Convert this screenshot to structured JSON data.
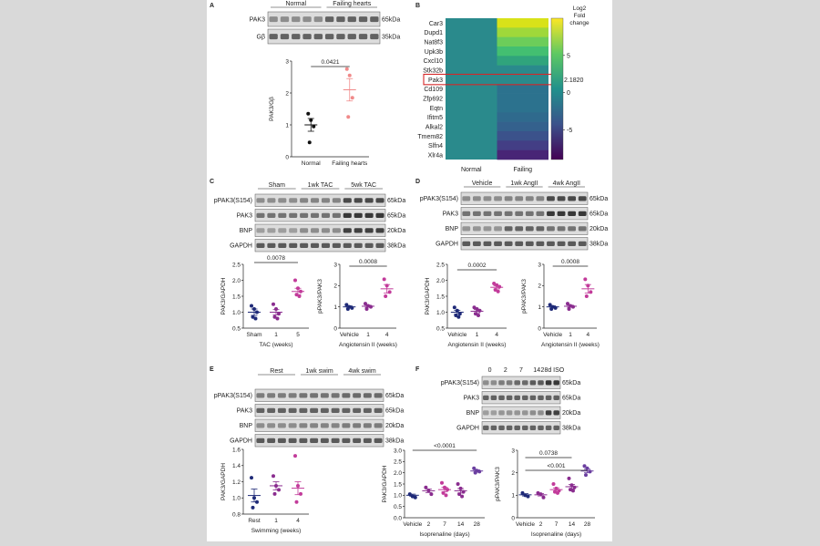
{
  "panels": {
    "A": {
      "letter": "A",
      "group_labels": [
        "Normal",
        "Failing hearts"
      ],
      "blot_rows": [
        {
          "label": "PAK3",
          "kda": "65kDa"
        },
        {
          "label": "Gβ",
          "kda": "35kDa"
        }
      ],
      "chart_data": {
        "type": "scatter",
        "categories": [
          "Normal",
          "Failing hearts"
        ],
        "ylabel": "PAK3/Gβ",
        "ylim": [
          0,
          3
        ],
        "yticks": [
          0,
          1,
          2,
          3
        ],
        "points": [
          [
            1.35,
            1.15,
            0.95,
            0.45
          ],
          [
            2.75,
            2.55,
            1.85,
            1.25
          ]
        ],
        "means": [
          1.0,
          2.1
        ],
        "sems": [
          0.2,
          0.35
        ],
        "p_values": [
          {
            "text": "0.0421",
            "from": 0,
            "to": 1
          }
        ]
      }
    },
    "B": {
      "letter": "B",
      "genes": [
        "Car3",
        "Dupd1",
        "Nat8f3",
        "Upk3b",
        "Cxcl10",
        "Stk32b",
        "Pak3",
        "Cd109",
        "Zfp692",
        "Eqtn",
        "Ifitm5",
        "Alkal2",
        "Tmem82",
        "Slfn4",
        "Xlr4a"
      ],
      "columns": [
        "Normal",
        "Failing"
      ],
      "highlight_gene": "Pak3",
      "highlight_value": "2.1820",
      "colorbar_title": [
        "Log2",
        "Fold",
        "change"
      ],
      "colorbar_ticks": [
        "5",
        "0",
        "-5"
      ],
      "colorbar_range": [
        -9,
        10
      ],
      "colors": {
        "highlight": "#d62728"
      }
    },
    "C": {
      "letter": "C",
      "group_labels": [
        "Sham",
        "1wk TAC",
        "5wk TAC"
      ],
      "blot_rows": [
        {
          "label": "pPAK3(S154)",
          "kda": "65kDa"
        },
        {
          "label": "PAK3",
          "kda": "65kDa"
        },
        {
          "label": "BNP",
          "kda": "20kDa"
        },
        {
          "label": "GAPDH",
          "kda": "38kDa"
        }
      ],
      "chart_data": [
        {
          "type": "scatter",
          "categories": [
            "Sham",
            "1",
            "5"
          ],
          "xlabel": "TAC (weeks)",
          "ylabel": "PAK3/GAPDH",
          "ylim": [
            0.5,
            2.5
          ],
          "yticks": [
            0.5,
            1.0,
            1.5,
            2.0,
            2.5
          ],
          "points": [
            [
              1.2,
              1.1,
              1.0,
              0.85,
              0.8
            ],
            [
              1.25,
              1.1,
              0.95,
              0.85,
              0.8
            ],
            [
              2.0,
              1.75,
              1.65,
              1.55,
              1.5
            ]
          ],
          "means": [
            1.0,
            1.0,
            1.65
          ],
          "sems": [
            0.1,
            0.08,
            0.1
          ],
          "p_values": [
            {
              "text": "0.0078",
              "from": 0,
              "to": 2
            }
          ]
        },
        {
          "type": "scatter",
          "categories": [
            "Vehicle",
            "1",
            "4"
          ],
          "xlabel": "Angiotensin II (weeks)",
          "ylabel": "pPAK3/PAK3",
          "ylim": [
            0,
            3
          ],
          "yticks": [
            0,
            1,
            2,
            3
          ],
          "points": [
            [
              1.1,
              1.0,
              0.95,
              0.9
            ],
            [
              1.15,
              1.05,
              1.0,
              0.9
            ],
            [
              2.3,
              2.0,
              1.7,
              1.5
            ]
          ],
          "means": [
            1.0,
            1.03,
            1.85
          ],
          "sems": [
            0.05,
            0.05,
            0.2
          ],
          "p_values": [
            {
              "text": "0.0008",
              "from": 0,
              "to": 2
            }
          ]
        }
      ]
    },
    "D": {
      "letter": "D",
      "group_labels": [
        "Vehicle",
        "1wk AngII",
        "4wk AngII"
      ],
      "blot_rows": [
        {
          "label": "pPAK3(S154)",
          "kda": "65kDa"
        },
        {
          "label": "PAK3",
          "kda": "65kDa"
        },
        {
          "label": "BNP",
          "kda": "20kDa"
        },
        {
          "label": "GAPDH",
          "kda": "38kDa"
        }
      ],
      "chart_data": [
        {
          "type": "scatter",
          "categories": [
            "Vehicle",
            "1",
            "4"
          ],
          "xlabel": "Angiotensin II (weeks)",
          "ylabel": "PAK3/GAPDH",
          "ylim": [
            0.5,
            2.5
          ],
          "yticks": [
            0.5,
            1.0,
            1.5,
            2.0,
            2.5
          ],
          "points": [
            [
              1.15,
              1.05,
              0.95,
              0.9,
              0.85
            ],
            [
              1.15,
              1.1,
              1.05,
              0.95,
              0.9
            ],
            [
              1.9,
              1.85,
              1.8,
              1.7,
              1.65
            ]
          ],
          "means": [
            1.0,
            1.03,
            1.78
          ],
          "sems": [
            0.06,
            0.05,
            0.05
          ],
          "p_values": [
            {
              "text": "0.0002",
              "from": 0,
              "to": 2
            }
          ]
        },
        {
          "type": "scatter",
          "categories": [
            "Vehicle",
            "1",
            "4"
          ],
          "xlabel": "Angiotensin II (weeks)",
          "ylabel": "pPAK3/PAK3",
          "ylim": [
            0,
            3
          ],
          "yticks": [
            0,
            1,
            2,
            3
          ],
          "points": [
            [
              1.1,
              1.0,
              0.95,
              0.9
            ],
            [
              1.15,
              1.05,
              1.0,
              0.9
            ],
            [
              2.3,
              2.0,
              1.7,
              1.5
            ]
          ],
          "means": [
            1.0,
            1.03,
            1.85
          ],
          "sems": [
            0.05,
            0.05,
            0.2
          ],
          "p_values": [
            {
              "text": "0.0008",
              "from": 0,
              "to": 2
            }
          ]
        }
      ]
    },
    "E": {
      "letter": "E",
      "group_labels": [
        "Rest",
        "1wk swim",
        "4wk swim"
      ],
      "blot_rows": [
        {
          "label": "pPAK3(S154)",
          "kda": "65kDa"
        },
        {
          "label": "PAK3",
          "kda": "65kDa"
        },
        {
          "label": "BNP",
          "kda": "20kDa"
        },
        {
          "label": "GAPDH",
          "kda": "38kDa"
        }
      ],
      "chart_data": {
        "type": "scatter",
        "categories": [
          "Rest",
          "1",
          "4"
        ],
        "xlabel": "Swimming (weeks)",
        "ylabel": "PAK3/GAPDH",
        "ylim": [
          0.8,
          1.6
        ],
        "yticks": [
          0.8,
          1.0,
          1.2,
          1.4,
          1.6
        ],
        "points": [
          [
            1.25,
            1.0,
            0.95,
            0.88
          ],
          [
            1.27,
            1.15,
            1.1,
            1.05
          ],
          [
            1.52,
            1.15,
            1.05,
            0.95
          ]
        ],
        "means": [
          1.03,
          1.15,
          1.12
        ],
        "sems": [
          0.08,
          0.05,
          0.08
        ],
        "p_values": []
      }
    },
    "F": {
      "letter": "F",
      "group_labels": [
        "0",
        "2",
        "7",
        "14",
        "28d ISO"
      ],
      "blot_rows": [
        {
          "label": "pPAK3(S154)",
          "kda": "65kDa"
        },
        {
          "label": "PAK3",
          "kda": "65kDa"
        },
        {
          "label": "BNP",
          "kda": "20kDa"
        },
        {
          "label": "GAPDH",
          "kda": "38kDa"
        }
      ],
      "chart_data": [
        {
          "type": "scatter",
          "categories": [
            "Vehicle",
            "2",
            "7",
            "14",
            "28"
          ],
          "xlabel": "Isoprenaline (days)",
          "ylabel": "PAK3/GAPDH",
          "ylim": [
            0,
            3
          ],
          "yticks": [
            0,
            0.5,
            1.0,
            1.5,
            2.0,
            2.5,
            3.0
          ],
          "points": [
            [
              1.05,
              0.95,
              0.9
            ],
            [
              1.35,
              1.2,
              1.05
            ],
            [
              1.55,
              1.35,
              1.25,
              1.1,
              1.0
            ],
            [
              1.5,
              1.3,
              1.15,
              1.05,
              0.95
            ],
            [
              2.2,
              2.1,
              2.05,
              2.0
            ]
          ],
          "means": [
            1.0,
            1.2,
            1.25,
            1.2,
            2.08
          ],
          "sems": [
            0.05,
            0.08,
            0.1,
            0.1,
            0.05
          ],
          "p_values": [
            {
              "text": "<0.0001",
              "from": 0,
              "to": 4
            }
          ]
        },
        {
          "type": "scatter",
          "categories": [
            "Vehicle",
            "2",
            "7",
            "14",
            "28"
          ],
          "xlabel": "Isoprenaline (days)",
          "ylabel": "pPAK3/PAK3",
          "ylim": [
            0,
            3
          ],
          "yticks": [
            0,
            1,
            2,
            3
          ],
          "points": [
            [
              1.1,
              1.0,
              0.95
            ],
            [
              1.1,
              1.05,
              0.9
            ],
            [
              1.5,
              1.3,
              1.2,
              1.15,
              1.1
            ],
            [
              1.75,
              1.45,
              1.35,
              1.25,
              1.2
            ],
            [
              2.3,
              2.2,
              2.05,
              1.9
            ]
          ],
          "means": [
            1.02,
            1.02,
            1.25,
            1.38,
            2.08
          ],
          "sems": [
            0.05,
            0.05,
            0.08,
            0.1,
            0.08
          ],
          "p_values": [
            {
              "text": "0.0738",
              "from": 0,
              "to": 3
            },
            {
              "text": "<0.001",
              "from": 0,
              "to": 4
            }
          ]
        }
      ]
    }
  }
}
